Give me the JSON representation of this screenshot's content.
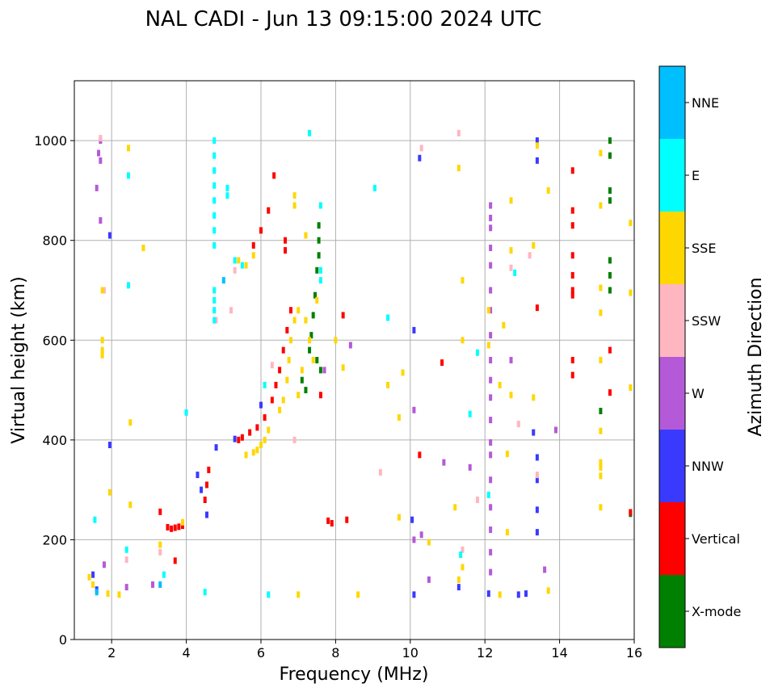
{
  "chart_data": {
    "type": "scatter",
    "title": "NAL CADI - Jun 13 09:15:00 2024 UTC",
    "xlabel": "Frequency (MHz)",
    "ylabel": "Virtual height (km)",
    "xlim": [
      1,
      16
    ],
    "ylim": [
      0,
      1120
    ],
    "xticks": [
      2,
      4,
      6,
      8,
      10,
      12,
      14,
      16
    ],
    "yticks": [
      0,
      200,
      400,
      600,
      800,
      1000
    ],
    "grid": true,
    "colorbar": {
      "title": "Azimuth Direction",
      "labels": [
        "X-mode",
        "Vertical",
        "NNW",
        "W",
        "SSW",
        "SSE",
        "E",
        "NNE"
      ],
      "colors": [
        "#008000",
        "#ff0000",
        "#3a3aff",
        "#b45ad8",
        "#ffb6c1",
        "#ffd700",
        "#00ffff",
        "#00bfff"
      ]
    },
    "series": [
      {
        "name": "X-mode",
        "color": "#008000",
        "points": [
          [
            7.55,
            830
          ],
          [
            7.55,
            800
          ],
          [
            7.55,
            770
          ],
          [
            7.5,
            740
          ],
          [
            7.45,
            690
          ],
          [
            7.4,
            650
          ],
          [
            7.35,
            610
          ],
          [
            7.3,
            580
          ],
          [
            7.5,
            560
          ],
          [
            7.6,
            540
          ],
          [
            7.2,
            500
          ],
          [
            7.1,
            520
          ],
          [
            15.35,
            1000
          ],
          [
            15.35,
            970
          ],
          [
            15.35,
            880
          ],
          [
            15.35,
            900
          ],
          [
            15.35,
            760
          ],
          [
            15.35,
            730
          ],
          [
            15.35,
            700
          ],
          [
            15.1,
            458
          ],
          [
            15.9,
            252
          ]
        ]
      },
      {
        "name": "Vertical",
        "color": "#ff0000",
        "points": [
          [
            3.9,
            228
          ],
          [
            3.8,
            226
          ],
          [
            3.7,
            224
          ],
          [
            3.6,
            222
          ],
          [
            3.5,
            225
          ],
          [
            4.6,
            340
          ],
          [
            4.55,
            310
          ],
          [
            4.5,
            280
          ],
          [
            5.4,
            400
          ],
          [
            5.5,
            405
          ],
          [
            5.7,
            415
          ],
          [
            5.9,
            425
          ],
          [
            6.1,
            445
          ],
          [
            6.3,
            480
          ],
          [
            6.4,
            510
          ],
          [
            6.5,
            540
          ],
          [
            6.6,
            580
          ],
          [
            6.7,
            620
          ],
          [
            6.8,
            660
          ],
          [
            7.6,
            490
          ],
          [
            5.8,
            790
          ],
          [
            6.0,
            820
          ],
          [
            6.2,
            860
          ],
          [
            6.35,
            930
          ],
          [
            6.65,
            780
          ],
          [
            6.65,
            800
          ],
          [
            14.35,
            940
          ],
          [
            14.35,
            860
          ],
          [
            14.35,
            830
          ],
          [
            14.35,
            770
          ],
          [
            14.35,
            730
          ],
          [
            14.35,
            700
          ],
          [
            14.35,
            690
          ],
          [
            14.35,
            560
          ],
          [
            14.35,
            530
          ],
          [
            15.35,
            580
          ],
          [
            15.35,
            495
          ],
          [
            10.25,
            370
          ],
          [
            10.85,
            555
          ],
          [
            8.2,
            650
          ],
          [
            8.3,
            240
          ],
          [
            7.8,
            238
          ],
          [
            7.9,
            233
          ],
          [
            13.4,
            665
          ],
          [
            3.3,
            256
          ],
          [
            3.7,
            158
          ],
          [
            15.9,
            255
          ]
        ]
      },
      {
        "name": "NNW",
        "color": "#3a3aff",
        "points": [
          [
            1.5,
            130
          ],
          [
            1.6,
            100
          ],
          [
            1.95,
            810
          ],
          [
            1.95,
            390
          ],
          [
            4.3,
            330
          ],
          [
            4.4,
            300
          ],
          [
            4.55,
            250
          ],
          [
            4.8,
            385
          ],
          [
            5.3,
            402
          ],
          [
            6.0,
            470
          ],
          [
            10.25,
            965
          ],
          [
            10.1,
            620
          ],
          [
            10.05,
            240
          ],
          [
            10.1,
            90
          ],
          [
            13.4,
            1000
          ],
          [
            13.4,
            960
          ],
          [
            13.4,
            365
          ],
          [
            13.4,
            320
          ],
          [
            13.4,
            260
          ],
          [
            13.4,
            215
          ],
          [
            13.3,
            415
          ],
          [
            13.1,
            92
          ],
          [
            12.9,
            90
          ],
          [
            12.1,
            92
          ],
          [
            11.3,
            105
          ]
        ]
      },
      {
        "name": "W",
        "color": "#b45ad8",
        "points": [
          [
            1.7,
            1000
          ],
          [
            1.65,
            975
          ],
          [
            1.7,
            960
          ],
          [
            1.6,
            905
          ],
          [
            1.7,
            840
          ],
          [
            1.8,
            150
          ],
          [
            2.4,
            105
          ],
          [
            3.1,
            110
          ],
          [
            12.15,
            870
          ],
          [
            12.15,
            845
          ],
          [
            12.15,
            825
          ],
          [
            12.15,
            785
          ],
          [
            12.15,
            750
          ],
          [
            12.15,
            700
          ],
          [
            12.15,
            660
          ],
          [
            12.15,
            610
          ],
          [
            12.15,
            560
          ],
          [
            12.15,
            520
          ],
          [
            12.15,
            485
          ],
          [
            12.15,
            440
          ],
          [
            12.15,
            395
          ],
          [
            12.15,
            370
          ],
          [
            12.15,
            320
          ],
          [
            12.15,
            265
          ],
          [
            12.15,
            220
          ],
          [
            12.15,
            175
          ],
          [
            12.15,
            135
          ],
          [
            8.4,
            590
          ],
          [
            10.1,
            460
          ],
          [
            10.1,
            200
          ],
          [
            10.3,
            210
          ],
          [
            10.5,
            120
          ],
          [
            10.9,
            355
          ],
          [
            11.6,
            345
          ],
          [
            12.7,
            560
          ],
          [
            13.6,
            140
          ],
          [
            13.9,
            420
          ],
          [
            7.7,
            540
          ]
        ]
      },
      {
        "name": "SSW",
        "color": "#ffb6c1",
        "points": [
          [
            1.7,
            1005
          ],
          [
            1.8,
            700
          ],
          [
            2.4,
            160
          ],
          [
            3.3,
            175
          ],
          [
            4.8,
            640
          ],
          [
            5.2,
            660
          ],
          [
            5.3,
            740
          ],
          [
            6.3,
            550
          ],
          [
            10.3,
            985
          ],
          [
            11.3,
            1015
          ],
          [
            11.4,
            180
          ],
          [
            12.7,
            745
          ],
          [
            13.2,
            770
          ],
          [
            13.4,
            330
          ],
          [
            12.9,
            432
          ],
          [
            11.8,
            280
          ],
          [
            6.9,
            400
          ],
          [
            9.2,
            335
          ]
        ]
      },
      {
        "name": "SSE",
        "color": "#ffd700",
        "points": [
          [
            1.75,
            580
          ],
          [
            1.75,
            600
          ],
          [
            1.75,
            570
          ],
          [
            1.75,
            700
          ],
          [
            2.45,
            985
          ],
          [
            1.4,
            125
          ],
          [
            1.5,
            110
          ],
          [
            3.3,
            190
          ],
          [
            3.9,
            235
          ],
          [
            5.6,
            370
          ],
          [
            5.8,
            375
          ],
          [
            5.9,
            380
          ],
          [
            6.0,
            390
          ],
          [
            6.1,
            400
          ],
          [
            6.2,
            420
          ],
          [
            6.5,
            460
          ],
          [
            6.6,
            480
          ],
          [
            6.7,
            520
          ],
          [
            6.75,
            560
          ],
          [
            6.8,
            600
          ],
          [
            6.9,
            640
          ],
          [
            7.0,
            660
          ],
          [
            7.2,
            640
          ],
          [
            7.3,
            600
          ],
          [
            7.4,
            560
          ],
          [
            7.1,
            540
          ],
          [
            7.0,
            490
          ],
          [
            5.4,
            760
          ],
          [
            5.6,
            750
          ],
          [
            5.8,
            770
          ],
          [
            6.9,
            870
          ],
          [
            6.9,
            890
          ],
          [
            7.2,
            810
          ],
          [
            7.5,
            680
          ],
          [
            8.0,
            600
          ],
          [
            8.2,
            545
          ],
          [
            11.4,
            600
          ],
          [
            11.3,
            945
          ],
          [
            11.4,
            720
          ],
          [
            12.1,
            660
          ],
          [
            12.1,
            590
          ],
          [
            12.4,
            510
          ],
          [
            12.5,
            630
          ],
          [
            12.7,
            880
          ],
          [
            12.7,
            780
          ],
          [
            12.7,
            490
          ],
          [
            12.6,
            372
          ],
          [
            12.6,
            215
          ],
          [
            13.3,
            485
          ],
          [
            13.3,
            790
          ],
          [
            13.4,
            990
          ],
          [
            13.7,
            900
          ],
          [
            15.1,
            975
          ],
          [
            15.1,
            870
          ],
          [
            15.1,
            705
          ],
          [
            15.1,
            655
          ],
          [
            15.1,
            560
          ],
          [
            15.1,
            418
          ],
          [
            15.1,
            355
          ],
          [
            15.1,
            345
          ],
          [
            15.1,
            328
          ],
          [
            15.1,
            265
          ],
          [
            15.9,
            835
          ],
          [
            15.9,
            695
          ],
          [
            15.9,
            505
          ],
          [
            13.7,
            98
          ],
          [
            12.4,
            90
          ],
          [
            11.4,
            145
          ],
          [
            11.3,
            120
          ],
          [
            11.2,
            265
          ],
          [
            10.5,
            195
          ],
          [
            9.4,
            510
          ],
          [
            9.8,
            535
          ],
          [
            9.7,
            445
          ],
          [
            9.7,
            245
          ],
          [
            8.6,
            90
          ],
          [
            7.0,
            90
          ],
          [
            2.2,
            90
          ],
          [
            1.9,
            92
          ],
          [
            1.95,
            295
          ],
          [
            2.5,
            270
          ],
          [
            2.5,
            435
          ],
          [
            2.85,
            785
          ]
        ]
      },
      {
        "name": "E",
        "color": "#00ffff",
        "points": [
          [
            4.75,
            1000
          ],
          [
            4.75,
            970
          ],
          [
            4.75,
            940
          ],
          [
            4.75,
            910
          ],
          [
            4.75,
            880
          ],
          [
            4.75,
            850
          ],
          [
            4.75,
            820
          ],
          [
            4.75,
            790
          ],
          [
            4.75,
            700
          ],
          [
            4.75,
            680
          ],
          [
            4.75,
            660
          ],
          [
            4.75,
            640
          ],
          [
            5.1,
            905
          ],
          [
            5.1,
            890
          ],
          [
            5.3,
            760
          ],
          [
            5.5,
            750
          ],
          [
            6.1,
            510
          ],
          [
            7.3,
            1015
          ],
          [
            7.6,
            870
          ],
          [
            7.6,
            740
          ],
          [
            7.6,
            720
          ],
          [
            9.05,
            905
          ],
          [
            11.35,
            170
          ],
          [
            11.8,
            575
          ],
          [
            12.8,
            735
          ],
          [
            2.45,
            710
          ],
          [
            1.55,
            240
          ],
          [
            2.4,
            180
          ],
          [
            3.4,
            130
          ],
          [
            4.0,
            455
          ],
          [
            4.5,
            95
          ],
          [
            6.2,
            90
          ],
          [
            9.4,
            645
          ],
          [
            11.6,
            452
          ],
          [
            12.1,
            290
          ],
          [
            2.45,
            930
          ]
        ]
      },
      {
        "name": "NNE",
        "color": "#00bfff",
        "points": [
          [
            1.6,
            95
          ],
          [
            3.3,
            110
          ],
          [
            5.0,
            720
          ]
        ]
      }
    ]
  }
}
